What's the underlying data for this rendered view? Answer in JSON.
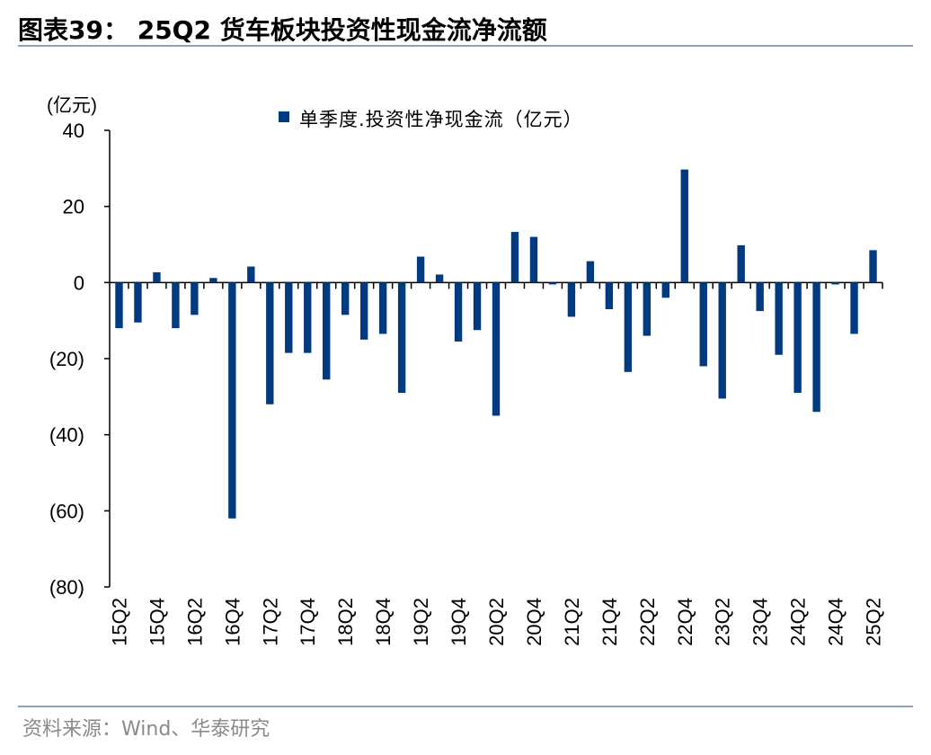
{
  "header": {
    "title": "图表39： 25Q2 货车板块投资性现金流净流额"
  },
  "footer": {
    "source": "资料来源：Wind、华泰研究"
  },
  "chart_data": {
    "type": "bar",
    "title": "",
    "xlabel": "",
    "ylabel": "(亿元)",
    "ylim": [
      -80,
      40
    ],
    "yticks": [
      40,
      20,
      0,
      -20,
      -40,
      -60,
      -80
    ],
    "ytick_labels": [
      "40",
      "20",
      "0",
      "(20)",
      "(40)",
      "(60)",
      "(80)"
    ],
    "xtick_labels": [
      "15Q2",
      "15Q4",
      "16Q2",
      "16Q4",
      "17Q2",
      "17Q4",
      "18Q2",
      "18Q4",
      "19Q2",
      "19Q4",
      "20Q2",
      "20Q4",
      "21Q2",
      "21Q4",
      "22Q2",
      "22Q4",
      "23Q2",
      "23Q4",
      "24Q2",
      "24Q4",
      "25Q2"
    ],
    "legend_position": "top",
    "colors": {
      "bar": "#003a80",
      "axis": "#000000"
    },
    "categories": [
      "15Q2",
      "15Q3",
      "15Q4",
      "16Q1",
      "16Q2",
      "16Q3",
      "16Q4",
      "17Q1",
      "17Q2",
      "17Q3",
      "17Q4",
      "18Q1",
      "18Q2",
      "18Q3",
      "18Q4",
      "19Q1",
      "19Q2",
      "19Q3",
      "19Q4",
      "20Q1",
      "20Q2",
      "20Q3",
      "20Q4",
      "21Q1",
      "21Q2",
      "21Q3",
      "21Q4",
      "22Q1",
      "22Q2",
      "22Q3",
      "22Q4",
      "23Q1",
      "23Q2",
      "23Q3",
      "23Q4",
      "24Q1",
      "24Q2",
      "24Q3",
      "24Q4",
      "25Q1",
      "25Q2"
    ],
    "series": [
      {
        "name": "单季度.投资性净现金流（亿元）",
        "values": [
          -12,
          -10.5,
          2.7,
          -12,
          -8.5,
          1.2,
          -62,
          4.2,
          -32,
          -18.5,
          -18.5,
          -25.5,
          -8.5,
          -15,
          -13.5,
          -29,
          6.8,
          2.1,
          -15.5,
          -12.5,
          -35,
          13.3,
          12,
          -0.5,
          -9,
          5.6,
          -7,
          -23.5,
          -14,
          -4,
          29.7,
          -22,
          -30.5,
          9.8,
          -7.5,
          -19,
          -29,
          -34,
          -0.5,
          -13.5,
          8.5
        ]
      }
    ]
  }
}
